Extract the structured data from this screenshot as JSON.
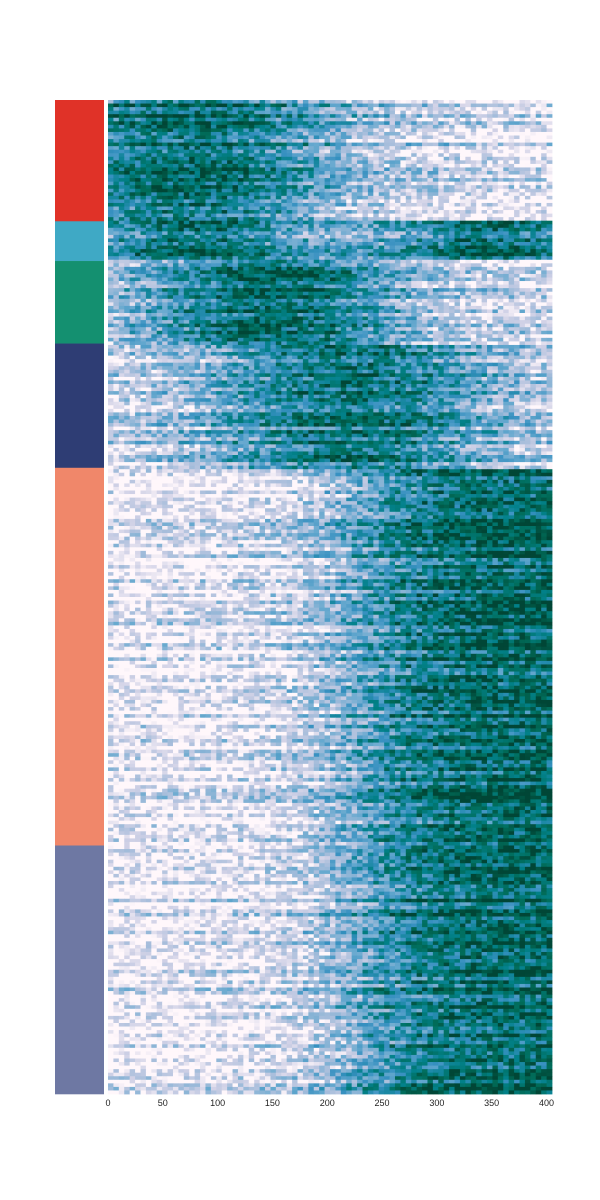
{
  "chart_data": {
    "type": "heatmap",
    "title": "",
    "xlabel": "",
    "ylabel": "",
    "xlim": [
      0,
      405
    ],
    "x_ticks": [
      "0",
      "50",
      "100",
      "150",
      "200",
      "250",
      "300",
      "350",
      "400"
    ],
    "grid": false,
    "legend": "none",
    "colormap": [
      "#fff7fb",
      "#d0d1e6",
      "#a6bddb",
      "#67a9cf",
      "#3690c0",
      "#02818a",
      "#016c59",
      "#014636"
    ],
    "row_groups": [
      {
        "color": "#e03228",
        "fraction": 0.122,
        "peak_x": 80,
        "trend": "early"
      },
      {
        "color": "#3fa9c5",
        "fraction": 0.04,
        "peak_x": 80,
        "second_peak_x": 350,
        "trend": "early-and-late"
      },
      {
        "color": "#149070",
        "fraction": 0.083,
        "peak_x": 150,
        "trend": "mid-early"
      },
      {
        "color": "#2e3d74",
        "fraction": 0.125,
        "peak_x": 220,
        "trend": "mid"
      },
      {
        "color": "#f0876a",
        "fraction": 0.38,
        "peak_x": 360,
        "trend": "late"
      },
      {
        "color": "#6e78a3",
        "fraction": 0.25,
        "peak_x": 360,
        "trend": "late"
      }
    ]
  }
}
